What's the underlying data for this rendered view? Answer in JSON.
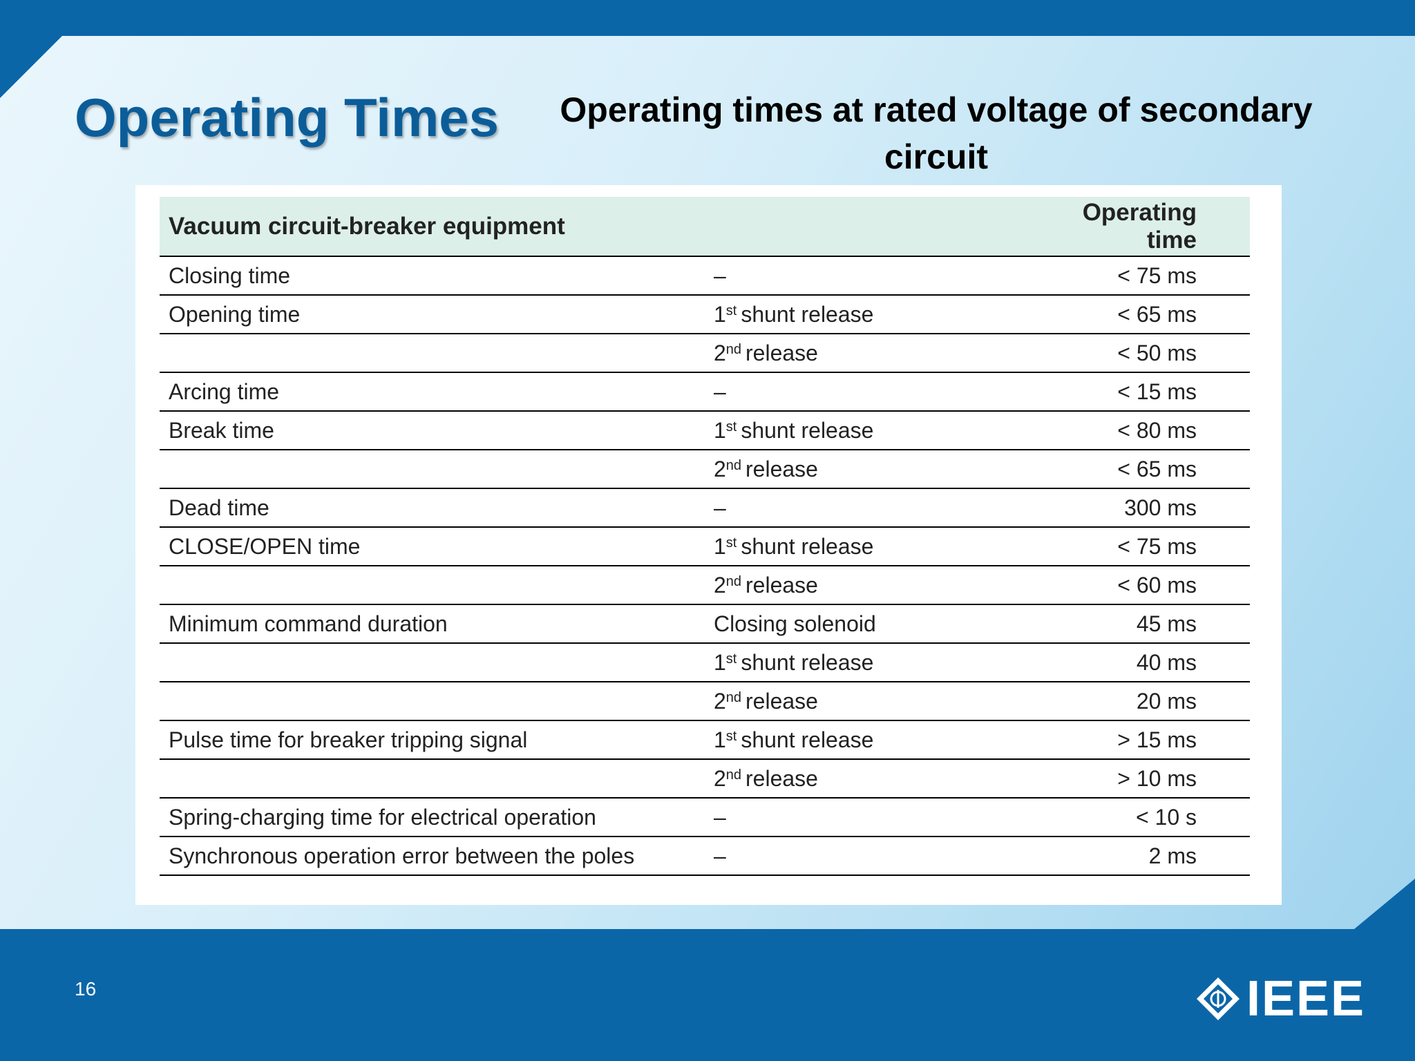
{
  "header": {
    "title": "Operating Times",
    "subtitle": "Operating times at rated voltage of secondary circuit"
  },
  "table": {
    "columns": [
      "Vacuum circuit-breaker equipment",
      "Operating time"
    ],
    "rows": [
      [
        "Closing time",
        "–",
        "< 75 ms"
      ],
      [
        "Opening time",
        {
          "base": "1",
          "sup": "st",
          "rest": "shunt release"
        },
        "< 65 ms"
      ],
      [
        null,
        {
          "base": "2",
          "sup": "nd",
          "rest": "release"
        },
        "< 50 ms"
      ],
      [
        "Arcing time",
        "–",
        "< 15 ms"
      ],
      [
        "Break time",
        {
          "base": "1",
          "sup": "st",
          "rest": "shunt release"
        },
        "< 80 ms"
      ],
      [
        null,
        {
          "base": "2",
          "sup": "nd",
          "rest": "release"
        },
        "< 65 ms"
      ],
      [
        "Dead time",
        "–",
        "300 ms"
      ],
      [
        "CLOSE/OPEN time",
        {
          "base": "1",
          "sup": "st",
          "rest": "shunt release"
        },
        "< 75 ms"
      ],
      [
        null,
        {
          "base": "2",
          "sup": "nd",
          "rest": "release"
        },
        "< 60 ms"
      ],
      [
        "Minimum command duration",
        "Closing solenoid",
        "45 ms"
      ],
      [
        null,
        {
          "base": "1",
          "sup": "st",
          "rest": "shunt release"
        },
        "40 ms"
      ],
      [
        null,
        {
          "base": "2",
          "sup": "nd",
          "rest": "release"
        },
        "20 ms"
      ],
      [
        "Pulse time for breaker tripping signal",
        {
          "base": "1",
          "sup": "st",
          "rest": "shunt release"
        },
        "> 15 ms"
      ],
      [
        null,
        {
          "base": "2",
          "sup": "nd",
          "rest": "release"
        },
        "> 10 ms"
      ],
      [
        "Spring-charging time for electrical operation",
        "–",
        "< 10 s"
      ],
      [
        "Synchronous operation error between the poles",
        "–",
        "2 ms"
      ]
    ]
  },
  "footer": {
    "page_number": "16",
    "logo": "IEEE"
  }
}
